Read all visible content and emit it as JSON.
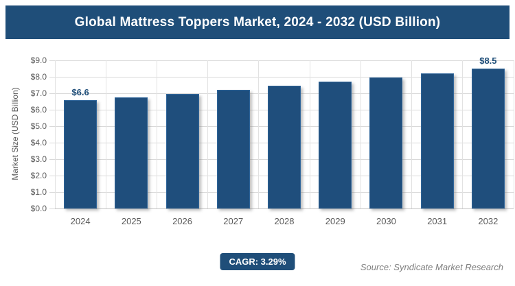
{
  "header": {
    "title": "Global Mattress Toppers Market, 2024 - 2032 (USD Billion)"
  },
  "chart_data": {
    "type": "bar",
    "title": "Global Mattress Toppers Market, 2024 - 2032 (USD Billion)",
    "categories": [
      "2024",
      "2025",
      "2026",
      "2027",
      "2028",
      "2029",
      "2030",
      "2031",
      "2032"
    ],
    "values": [
      6.6,
      6.75,
      6.95,
      7.2,
      7.45,
      7.7,
      7.95,
      8.2,
      8.5
    ],
    "bar_labels": [
      "$6.6",
      "",
      "",
      "",
      "",
      "",
      "",
      "",
      "$8.5"
    ],
    "xlabel": "",
    "ylabel": "Market Size (USD Billion)",
    "ylim": [
      0,
      9
    ],
    "ytick_step": 1,
    "ytick_labels": [
      "$0.0",
      "$1.0",
      "$2.0",
      "$3.0",
      "$4.0",
      "$5.0",
      "$6.0",
      "$7.0",
      "$8.0",
      "$9.0"
    ],
    "grid": true,
    "legend": false,
    "bar_color": "#1f4e7c"
  },
  "footer": {
    "cagr_label": "CAGR: 3.29%",
    "source": "Source: Syndicate Market Research"
  },
  "colors": {
    "banner_navy": "#1f4e79",
    "bar_navy": "#1f4e7c",
    "gridline": "#d9d9d9",
    "tick_text": "#595959",
    "source_text": "#7f7f7f",
    "label_text": "#1f4e79"
  }
}
